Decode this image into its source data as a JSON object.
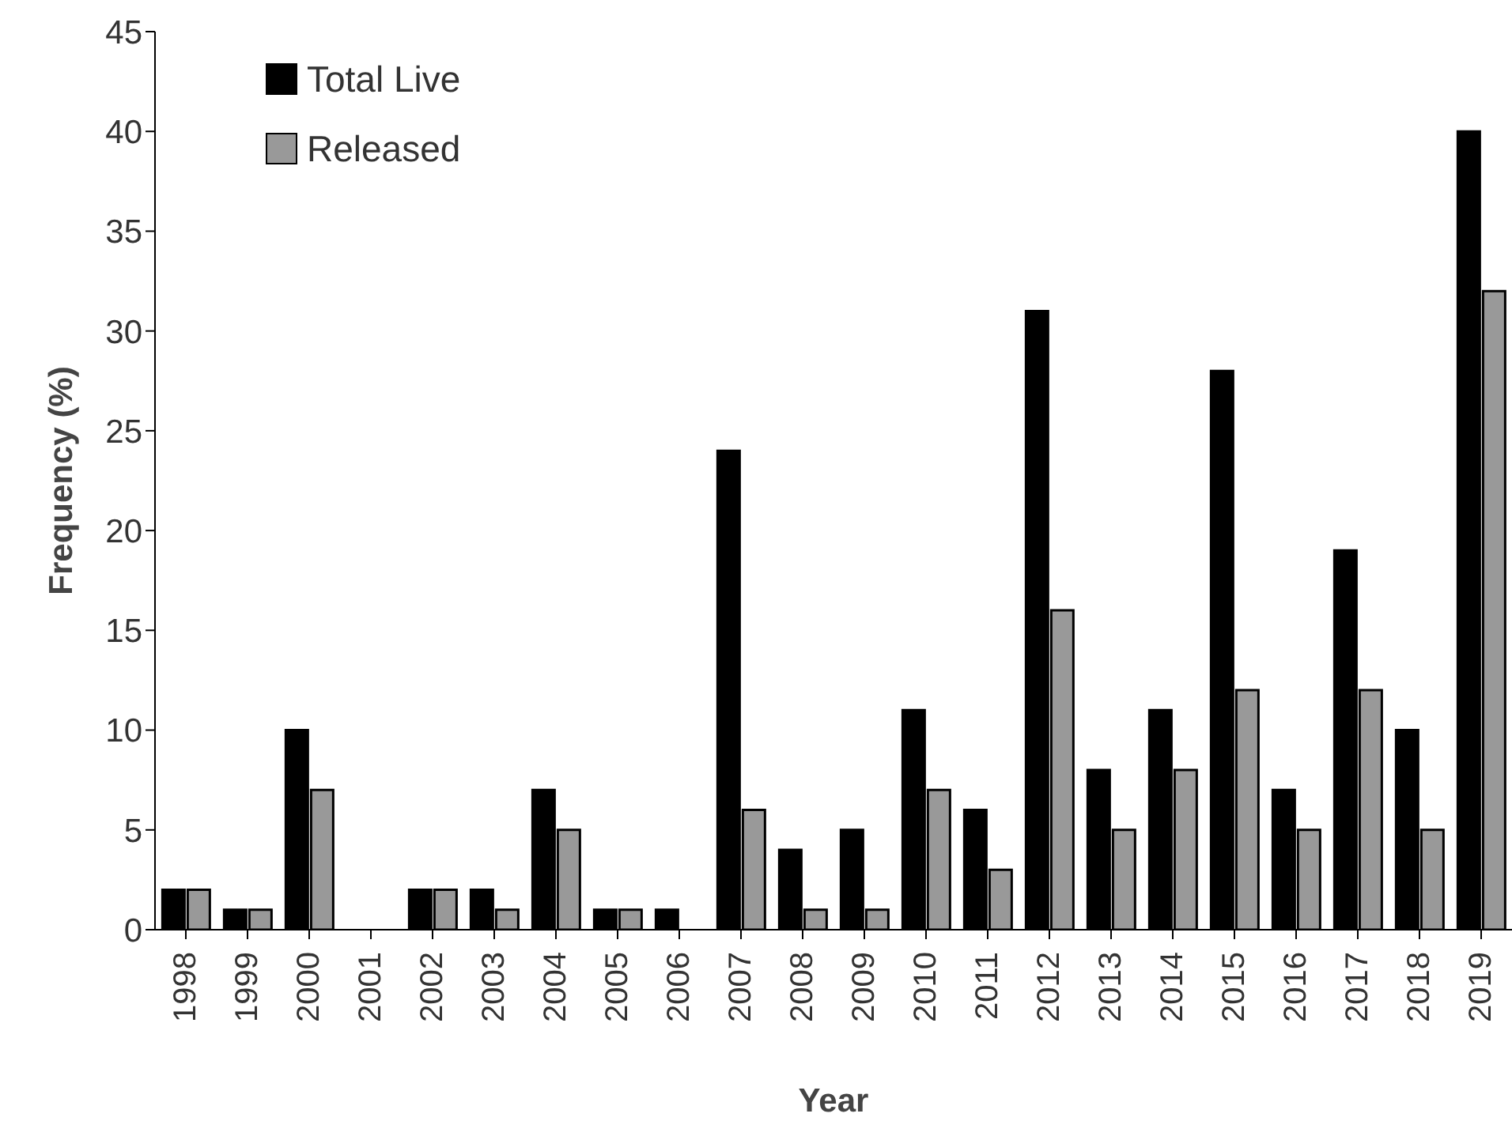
{
  "chart_data": {
    "type": "bar",
    "xlabel": "Year",
    "ylabel": "Frequency (%)",
    "categories": [
      "1998",
      "1999",
      "2000",
      "2001",
      "2002",
      "2003",
      "2004",
      "2005",
      "2006",
      "2007",
      "2008",
      "2009",
      "2010",
      "2011",
      "2012",
      "2013",
      "2014",
      "2015",
      "2016",
      "2017",
      "2018",
      "2019"
    ],
    "series": [
      {
        "name": "Total Live",
        "color": "#000000",
        "values": [
          2,
          1,
          10,
          0,
          2,
          2,
          7,
          1,
          1,
          24,
          4,
          5,
          11,
          6,
          31,
          8,
          11,
          28,
          7,
          19,
          10,
          40
        ]
      },
      {
        "name": "Released",
        "color": "#999999",
        "values": [
          2,
          1,
          7,
          0,
          2,
          1,
          5,
          1,
          0,
          6,
          1,
          1,
          7,
          3,
          16,
          5,
          8,
          12,
          5,
          12,
          5,
          32
        ]
      }
    ],
    "ylim": [
      0,
      45
    ],
    "yticks": [
      0,
      5,
      10,
      15,
      20,
      25,
      30,
      35,
      40,
      45
    ],
    "grid": false,
    "legend": "top left"
  }
}
